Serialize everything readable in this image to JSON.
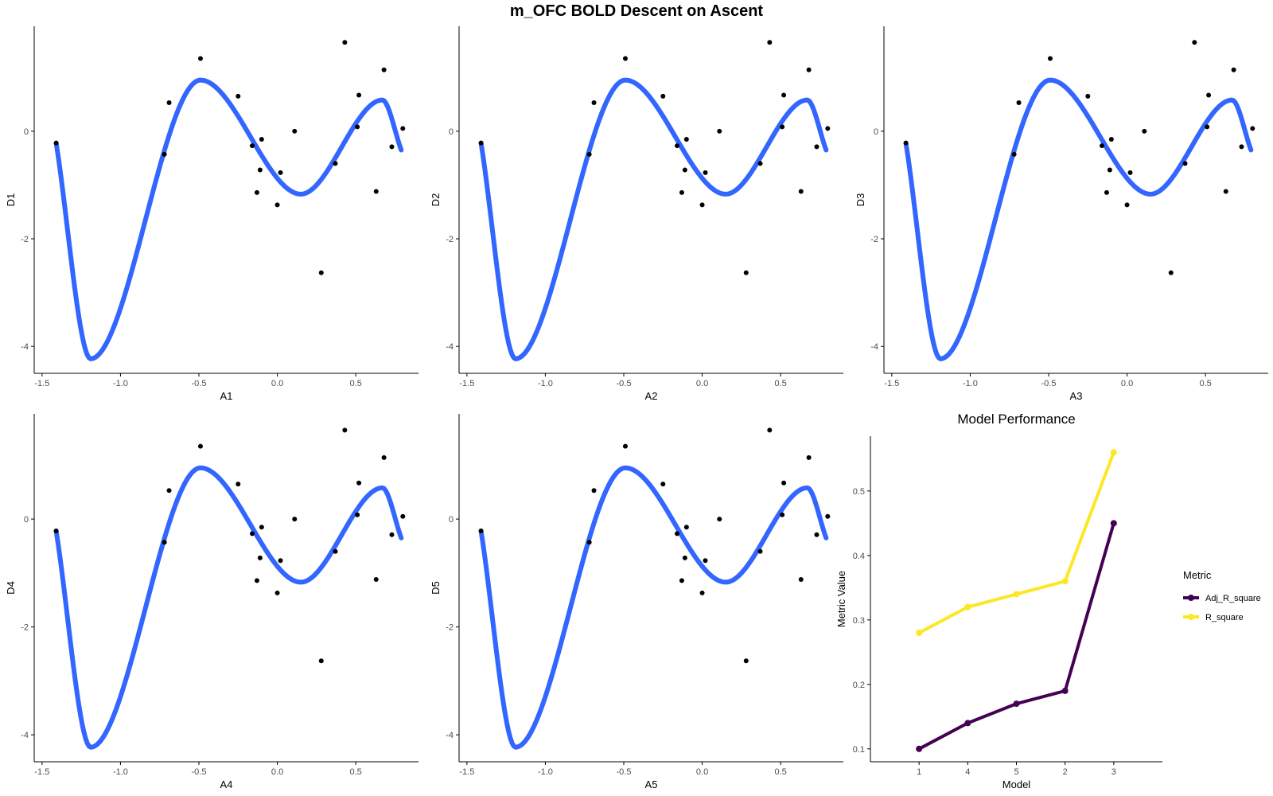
{
  "title": "m_OFC BOLD Descent on Ascent",
  "colors": {
    "curve": "#3366ff",
    "points": "#000000",
    "adj": "#440154",
    "rsq": "#fde725",
    "axis": "#000000",
    "tick_text": "#4d4d4d"
  },
  "shared_points": [
    [
      -1.41,
      -0.22
    ],
    [
      -0.72,
      -0.43
    ],
    [
      -0.69,
      0.53
    ],
    [
      -0.49,
      1.35
    ],
    [
      -0.25,
      0.65
    ],
    [
      -0.16,
      -0.27
    ],
    [
      -0.13,
      -1.14
    ],
    [
      -0.11,
      -0.72
    ],
    [
      -0.1,
      -0.15
    ],
    [
      0.02,
      -0.77
    ],
    [
      0.0,
      -1.37
    ],
    [
      0.11,
      0.0
    ],
    [
      0.28,
      -2.63
    ],
    [
      0.37,
      -0.6
    ],
    [
      0.43,
      1.65
    ],
    [
      0.51,
      0.08
    ],
    [
      0.52,
      0.67
    ],
    [
      0.63,
      -1.12
    ],
    [
      0.68,
      1.14
    ],
    [
      0.73,
      -0.29
    ],
    [
      0.8,
      0.05
    ]
  ],
  "curve_fit": {
    "xmin": -1.41,
    "xmax": 0.79,
    "knots": [
      [
        -1.41,
        -0.22
      ],
      [
        -1.19,
        -4.23
      ],
      [
        -0.49,
        0.95
      ],
      [
        0.15,
        -1.17
      ],
      [
        0.67,
        0.58
      ],
      [
        0.79,
        -0.35
      ]
    ]
  },
  "chart_data": [
    {
      "type": "scatter",
      "xlabel": "A1",
      "ylabel": "D1",
      "xlim": [
        -1.55,
        0.9
      ],
      "ylim": [
        -4.5,
        1.95
      ],
      "xticks": [
        "-1.5",
        "-1.0",
        "-0.5",
        "0.0",
        "0.5"
      ],
      "yticks": [
        "-4",
        "-2",
        "0"
      ]
    },
    {
      "type": "scatter",
      "xlabel": "A2",
      "ylabel": "D2",
      "xlim": [
        -1.55,
        0.9
      ],
      "ylim": [
        -4.5,
        1.95
      ],
      "xticks": [
        "-1.5",
        "-1.0",
        "-0.5",
        "0.0",
        "0.5"
      ],
      "yticks": [
        "-4",
        "-2",
        "0"
      ]
    },
    {
      "type": "scatter",
      "xlabel": "A3",
      "ylabel": "D3",
      "xlim": [
        -1.55,
        0.9
      ],
      "ylim": [
        -4.5,
        1.95
      ],
      "xticks": [
        "-1.5",
        "-1.0",
        "-0.5",
        "0.0",
        "0.5"
      ],
      "yticks": [
        "-4",
        "-2",
        "0"
      ]
    },
    {
      "type": "scatter",
      "xlabel": "A4",
      "ylabel": "D4",
      "xlim": [
        -1.55,
        0.9
      ],
      "ylim": [
        -4.5,
        1.95
      ],
      "xticks": [
        "-1.5",
        "-1.0",
        "-0.5",
        "0.0",
        "0.5"
      ],
      "yticks": [
        "-4",
        "-2",
        "0"
      ]
    },
    {
      "type": "scatter",
      "xlabel": "A5",
      "ylabel": "D5",
      "xlim": [
        -1.55,
        0.9
      ],
      "ylim": [
        -4.5,
        1.95
      ],
      "xticks": [
        "-1.5",
        "-1.0",
        "-0.5",
        "0.0",
        "0.5"
      ],
      "yticks": [
        "-4",
        "-2",
        "0"
      ]
    },
    {
      "type": "line",
      "title": "Model Performance",
      "xlabel": "Model",
      "ylabel": "Metric Value",
      "categories": [
        "1",
        "4",
        "5",
        "2",
        "3"
      ],
      "ylim": [
        0.08,
        0.585
      ],
      "yticks": [
        "0.1",
        "0.2",
        "0.3",
        "0.4",
        "0.5"
      ],
      "legend_title": "Metric",
      "legend_position": "right",
      "series": [
        {
          "name": "Adj_R_square",
          "values": [
            0.1,
            0.14,
            0.17,
            0.19,
            0.45
          ],
          "color": "#440154"
        },
        {
          "name": "R_square",
          "values": [
            0.28,
            0.32,
            0.34,
            0.36,
            0.56
          ],
          "color": "#fde725"
        }
      ]
    }
  ]
}
